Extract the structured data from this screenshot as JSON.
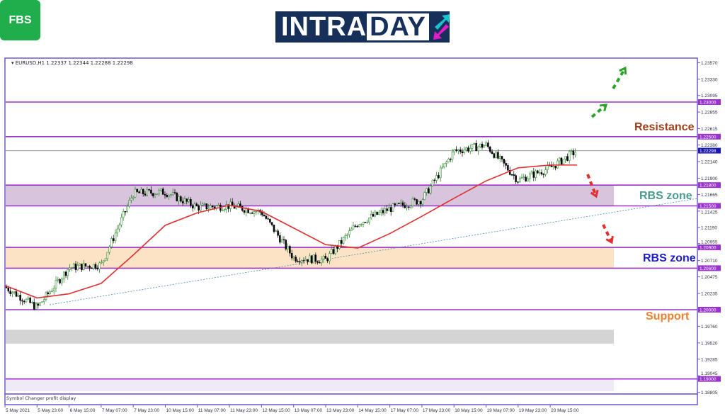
{
  "branding": {
    "fbs_logo": "FBS",
    "intraday_logo": "INTRADAY"
  },
  "chart_header": "EURUSD,H1  1.22337 1.22344 1.22288 1.22298",
  "footer_note": "Symbol Changer profit display",
  "annotations": {
    "resistance": "Resistance",
    "rbs_zone_upper": "RBS zone",
    "rbs_zone_lower": "RBS zone",
    "support": "Support"
  },
  "colors": {
    "level_line": "#9933cc",
    "ma": "#e03030",
    "bull": "#1a7f1a",
    "bear": "#000000",
    "zone_upper": "#d8c4dc",
    "zone_lower": "#fde3c6",
    "zone_grey": "#d4d4d4",
    "resistance": "#a0401a",
    "rbs_upper": "#4a9a8e",
    "rbs_lower": "#1a1ad0",
    "support": "#f08030",
    "arrow_up": "#2aa52a",
    "arrow_down": "#e03030"
  },
  "chart_data": {
    "type": "candlestick",
    "symbol": "EURUSD",
    "timeframe": "H1",
    "ylim": [
      1.18805,
      1.2357
    ],
    "y_ticks": [
      "1.23570",
      "1.23330",
      "1.23095",
      "1.22855",
      "1.22615",
      "1.22380",
      "1.22140",
      "1.21900",
      "1.21665",
      "1.21425",
      "1.21190",
      "1.20955",
      "1.20710",
      "1.20475",
      "1.20235",
      "1.19760",
      "1.19520",
      "1.19285",
      "1.19045",
      "1.18805"
    ],
    "level_labels": [
      "1.23000",
      "1.22500",
      "1.21800",
      "1.21500",
      "1.20900",
      "1.20600",
      "1.20000",
      "1.19000"
    ],
    "current_price": "1.22298",
    "x_ticks": [
      "5 May 2021",
      "5 May 23:00",
      "6 May 15:00",
      "7 May 07:00",
      "7 May 23:00",
      "10 May 15:00",
      "11 May 07:00",
      "11 May 23:00",
      "12 May 15:00",
      "13 May 07:00",
      "13 May 23:00",
      "14 May 15:00",
      "17 May 07:00",
      "17 May 23:00",
      "18 May 15:00",
      "19 May 07:00",
      "19 May 23:00",
      "20 May 15:00"
    ],
    "close_at_ticks": [
      1.2033,
      1.2003,
      1.2061,
      1.2065,
      1.2168,
      1.217,
      1.2148,
      1.215,
      1.2141,
      1.2075,
      1.2072,
      1.2125,
      1.2146,
      1.2159,
      1.2229,
      1.2238,
      1.2187,
      1.2205
    ],
    "last_close": 1.22298,
    "moving_average_at_ticks": [
      1.2035,
      1.2017,
      1.2023,
      1.2038,
      1.2079,
      1.2122,
      1.214,
      1.2151,
      1.2142,
      1.2118,
      1.2094,
      1.2089,
      1.211,
      1.2135,
      1.2161,
      1.2186,
      1.2205,
      1.2209
    ],
    "zones": [
      {
        "from": 1.215,
        "to": 1.218,
        "color": "zone_upper"
      },
      {
        "from": 1.206,
        "to": 1.209,
        "color": "zone_lower"
      },
      {
        "from": 1.1951,
        "to": 1.1971,
        "color": "zone_grey"
      }
    ]
  }
}
